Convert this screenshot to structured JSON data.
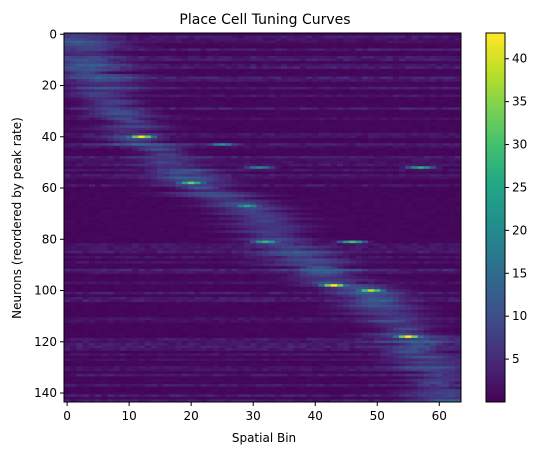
{
  "chart_data": {
    "type": "heatmap",
    "title": "Place Cell Tuning Curves",
    "xlabel": "Spatial Bin",
    "ylabel": "Neurons (reordered by peak rate)",
    "n_bins": 64,
    "n_neurons": 144,
    "xlim": [
      -0.5,
      63.5
    ],
    "ylim": [
      143.5,
      -0.5
    ],
    "xticks": [
      0,
      10,
      20,
      30,
      40,
      50,
      60
    ],
    "yticks": [
      0,
      20,
      40,
      60,
      80,
      100,
      120,
      140
    ],
    "colormap": "viridis",
    "vmin": 0,
    "vmax": 43,
    "colorbar_ticks": [
      5,
      10,
      15,
      20,
      25,
      30,
      35,
      40
    ],
    "peak_field_centers": [
      [
        0,
        1
      ],
      [
        20,
        5
      ],
      [
        40,
        11
      ],
      [
        58,
        21
      ],
      [
        68,
        29
      ],
      [
        81,
        34
      ],
      [
        98,
        44
      ],
      [
        100,
        49
      ],
      [
        118,
        55
      ],
      [
        143,
        62
      ]
    ],
    "highlighted_peaks": [
      {
        "neuron": 40,
        "bin": 12,
        "rate": 42
      },
      {
        "neuron": 43,
        "bin": 25,
        "rate": 22
      },
      {
        "neuron": 52,
        "bin": 31,
        "rate": 20
      },
      {
        "neuron": 52,
        "bin": 57,
        "rate": 27
      },
      {
        "neuron": 58,
        "bin": 20,
        "rate": 33
      },
      {
        "neuron": 67,
        "bin": 29,
        "rate": 25
      },
      {
        "neuron": 81,
        "bin": 32,
        "rate": 28
      },
      {
        "neuron": 81,
        "bin": 46,
        "rate": 30
      },
      {
        "neuron": 98,
        "bin": 43,
        "rate": 43
      },
      {
        "neuron": 100,
        "bin": 49,
        "rate": 38
      },
      {
        "neuron": 118,
        "bin": 55,
        "rate": 43
      }
    ],
    "colors": {
      "low": "#440154",
      "mid": "#21918c",
      "high": "#fde725"
    }
  }
}
